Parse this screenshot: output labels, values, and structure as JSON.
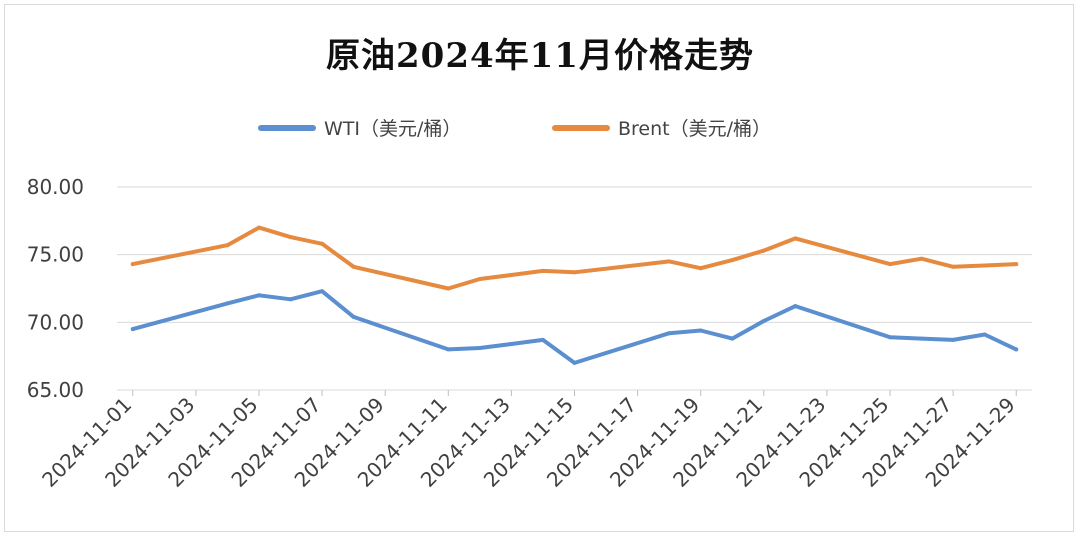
{
  "chart_data": {
    "type": "line",
    "title": "原油2024年11月价格走势",
    "ylim": [
      65,
      80
    ],
    "yticks": [
      "65.00",
      "70.00",
      "75.00",
      "80.00"
    ],
    "xtick_labels": [
      "2024-11-01",
      "2024-11-03",
      "2024-11-05",
      "2024-11-07",
      "2024-11-09",
      "2024-11-11",
      "2024-11-13",
      "2024-11-15",
      "2024-11-17",
      "2024-11-19",
      "2024-11-21",
      "2024-11-23",
      "2024-11-25",
      "2024-11-27",
      "2024-11-29"
    ],
    "x": [
      "2024-11-01",
      "2024-11-04",
      "2024-11-05",
      "2024-11-06",
      "2024-11-07",
      "2024-11-08",
      "2024-11-11",
      "2024-11-12",
      "2024-11-13",
      "2024-11-14",
      "2024-11-15",
      "2024-11-18",
      "2024-11-19",
      "2024-11-20",
      "2024-11-21",
      "2024-11-22",
      "2024-11-25",
      "2024-11-26",
      "2024-11-27",
      "2024-11-28",
      "2024-11-29"
    ],
    "grid": true,
    "legend_position": "top",
    "series": [
      {
        "name": "WTI（美元/桶）",
        "color": "#5b8fd0",
        "values": [
          69.5,
          71.4,
          72.0,
          71.7,
          72.3,
          70.4,
          68.0,
          68.1,
          68.4,
          68.7,
          67.0,
          69.2,
          69.4,
          68.8,
          70.1,
          71.2,
          68.9,
          68.8,
          68.7,
          69.1,
          68.0
        ]
      },
      {
        "name": "Brent（美元/桶）",
        "color": "#e58a3f",
        "values": [
          74.3,
          75.7,
          77.0,
          76.3,
          75.8,
          74.1,
          72.5,
          73.2,
          73.5,
          73.8,
          73.7,
          74.5,
          74.0,
          74.6,
          75.3,
          76.2,
          74.3,
          74.7,
          74.1,
          74.2,
          74.3
        ]
      }
    ]
  }
}
